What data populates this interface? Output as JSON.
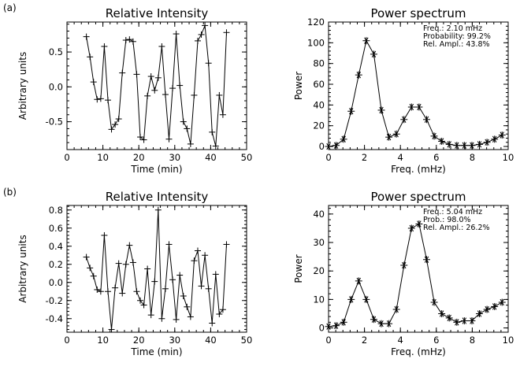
{
  "chart_data": [
    {
      "type": "line",
      "panel_label": "(a)",
      "title": "Relative Intensity",
      "xlabel": "Time (min)",
      "ylabel": "Arbitrary units",
      "xlim": [
        0,
        50
      ],
      "ylim": [
        -0.9,
        0.93
      ],
      "xticks": [
        0,
        10,
        20,
        30,
        40,
        50
      ],
      "yticks": [
        -0.5,
        0.0,
        0.5
      ],
      "ytick_labels": [
        "-0.5",
        "0.0",
        "0.5"
      ],
      "marker": "plus",
      "series": [
        {
          "x": [
            5.4,
            6.4,
            7.4,
            8.4,
            9.4,
            10.4,
            11.4,
            12.4,
            13.4,
            14.4,
            15.4,
            16.4,
            17.4,
            18.4,
            19.4,
            20.4,
            21.4,
            22.4,
            23.4,
            24.4,
            25.4,
            26.4,
            27.4,
            28.4,
            29.4,
            30.4,
            31.4,
            32.4,
            33.4,
            34.4,
            35.4,
            36.4,
            37.4,
            38.4,
            39.4,
            40.4,
            41.4,
            42.4,
            43.4,
            44.4
          ],
          "y": [
            0.72,
            0.43,
            0.07,
            -0.18,
            -0.17,
            0.58,
            -0.19,
            -0.61,
            -0.54,
            -0.46,
            0.2,
            0.67,
            0.68,
            0.65,
            0.18,
            -0.72,
            -0.76,
            -0.13,
            0.15,
            -0.05,
            0.13,
            0.58,
            -0.11,
            -0.75,
            -0.02,
            0.76,
            0.02,
            -0.5,
            -0.6,
            -0.82,
            -0.12,
            0.66,
            0.75,
            0.88,
            0.34,
            -0.65,
            -0.85,
            -0.12,
            -0.4,
            0.78
          ]
        }
      ]
    },
    {
      "type": "line",
      "title": "Power spectrum",
      "xlabel": "Freq. (mHz)",
      "ylabel": "Power",
      "xlim": [
        0,
        10
      ],
      "ylim": [
        -3,
        120
      ],
      "xticks": [
        0,
        2,
        4,
        6,
        8,
        10
      ],
      "yticks": [
        0,
        20,
        40,
        60,
        80,
        100,
        120
      ],
      "marker": "asterisk",
      "annotations": [
        "Freq.: 2.10 mHz",
        "Probability: 99.2%",
        "Rel. Ampl.: 43.8%"
      ],
      "series": [
        {
          "x": [
            0,
            0.42,
            0.84,
            1.26,
            1.68,
            2.1,
            2.52,
            2.94,
            3.36,
            3.78,
            4.2,
            4.62,
            5.04,
            5.46,
            5.88,
            6.3,
            6.72,
            7.14,
            7.56,
            7.98,
            8.4,
            8.82,
            9.24,
            9.66
          ],
          "y": [
            0,
            1,
            7,
            34,
            69,
            102,
            89,
            35,
            9,
            12,
            26,
            38,
            38,
            26,
            10,
            5,
            2,
            1,
            1,
            1,
            2,
            4,
            7,
            11
          ]
        }
      ]
    },
    {
      "type": "line",
      "panel_label": "(b)",
      "title": "Relative Intensity",
      "xlabel": "Time (min)",
      "ylabel": "Arbitrary units",
      "xlim": [
        0,
        50
      ],
      "ylim": [
        -0.55,
        0.85
      ],
      "xticks": [
        0,
        10,
        20,
        30,
        40,
        50
      ],
      "yticks": [
        -0.4,
        -0.2,
        0.0,
        0.2,
        0.4,
        0.6,
        0.8
      ],
      "ytick_labels": [
        "-0.4",
        "-0.2",
        "0.0",
        "0.2",
        "0.4",
        "0.6",
        "0.8"
      ],
      "marker": "plus",
      "series": [
        {
          "x": [
            5.4,
            6.4,
            7.4,
            8.4,
            9.4,
            10.4,
            11.4,
            12.4,
            13.4,
            14.4,
            15.4,
            16.4,
            17.4,
            18.4,
            19.4,
            20.4,
            21.4,
            22.4,
            23.4,
            24.4,
            25.4,
            26.4,
            27.4,
            28.4,
            29.4,
            30.4,
            31.4,
            32.4,
            33.4,
            34.4,
            35.4,
            36.4,
            37.4,
            38.4,
            39.4,
            40.4,
            41.4,
            42.4,
            43.4,
            44.4
          ],
          "y": [
            0.28,
            0.16,
            0.07,
            -0.08,
            -0.1,
            0.52,
            -0.1,
            -0.52,
            -0.06,
            0.21,
            -0.12,
            0.2,
            0.41,
            0.22,
            -0.1,
            -0.2,
            -0.25,
            0.15,
            -0.36,
            0.01,
            0.8,
            -0.4,
            -0.07,
            0.42,
            0.03,
            -0.41,
            0.08,
            -0.15,
            -0.27,
            -0.38,
            0.24,
            0.35,
            -0.04,
            0.3,
            -0.07,
            -0.45,
            0.09,
            -0.35,
            -0.3,
            0.42
          ]
        }
      ]
    },
    {
      "type": "line",
      "title": "Power spectrum",
      "xlabel": "Freq. (mHz)",
      "ylabel": "Power",
      "xlim": [
        0,
        10
      ],
      "ylim": [
        -1.5,
        43
      ],
      "xticks": [
        0,
        2,
        4,
        6,
        8,
        10
      ],
      "yticks": [
        0,
        10,
        20,
        30,
        40
      ],
      "marker": "asterisk",
      "annotations": [
        "Freq.: 5.04 mHz",
        "Prob.: 98.0%",
        "Rel. Ampl.: 26.2%"
      ],
      "series": [
        {
          "x": [
            0,
            0.42,
            0.84,
            1.26,
            1.68,
            2.1,
            2.52,
            2.94,
            3.36,
            3.78,
            4.2,
            4.62,
            5.04,
            5.46,
            5.88,
            6.3,
            6.72,
            7.14,
            7.56,
            7.98,
            8.4,
            8.82,
            9.24,
            9.66
          ],
          "y": [
            0.5,
            0.8,
            2,
            10,
            16.5,
            10,
            3,
            1.5,
            1.5,
            6.5,
            22,
            35,
            36.5,
            24,
            9,
            5,
            3.5,
            2,
            2.5,
            2.5,
            5,
            6.5,
            7.5,
            9
          ]
        }
      ]
    }
  ]
}
